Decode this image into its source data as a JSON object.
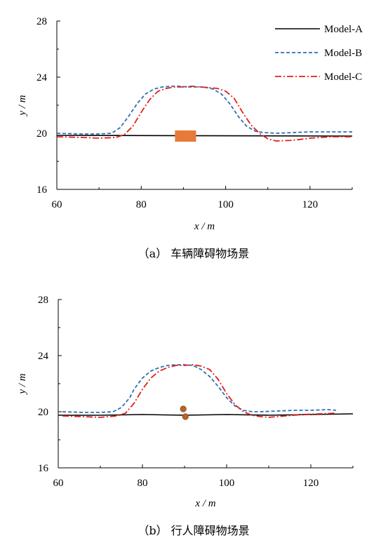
{
  "colors": {
    "model_a": "#000000",
    "model_b": "#2e6fb5",
    "model_c": "#e0201b",
    "obstacle_vehicle": "#e8793a",
    "obstacle_pedestrian": "#b5652a"
  },
  "chart_data": [
    {
      "type": "line",
      "caption": "（a）  车辆障碍物场景",
      "xlabel": "x / m",
      "ylabel": "y / m",
      "xlim": [
        60,
        130
      ],
      "ylim": [
        16,
        28
      ],
      "xticks": [
        60,
        80,
        100,
        120
      ],
      "yticks": [
        16,
        20,
        24,
        28
      ],
      "legend_position": "top-right",
      "series": [
        {
          "name": "Model-A",
          "style": "solid",
          "color": "#000000",
          "x": [
            60,
            130
          ],
          "y": [
            19.85,
            19.8
          ]
        },
        {
          "name": "Model-B",
          "style": "dashed",
          "color": "#2e6fb5",
          "x": [
            60,
            66,
            70,
            73,
            75,
            77,
            79,
            81,
            83,
            85,
            87,
            89,
            91,
            93,
            95,
            97,
            99,
            101,
            103,
            105,
            107,
            109,
            112,
            116,
            120,
            125,
            130
          ],
          "y": [
            20.0,
            19.95,
            19.95,
            20.0,
            20.4,
            21.2,
            22.1,
            22.8,
            23.15,
            23.3,
            23.35,
            23.35,
            23.3,
            23.3,
            23.3,
            23.15,
            22.8,
            22.1,
            21.2,
            20.5,
            20.15,
            20.05,
            20.0,
            20.05,
            20.1,
            20.1,
            20.1
          ]
        },
        {
          "name": "Model-C",
          "style": "dashdot",
          "color": "#e0201b",
          "x": [
            60,
            66,
            70,
            74,
            76,
            78,
            80,
            82,
            84,
            86,
            88,
            90,
            92,
            94,
            96,
            98,
            100,
            102,
            104,
            106,
            108,
            110,
            112,
            116,
            120,
            125,
            130
          ],
          "y": [
            19.75,
            19.7,
            19.65,
            19.7,
            19.9,
            20.5,
            21.5,
            22.4,
            23.0,
            23.2,
            23.3,
            23.3,
            23.35,
            23.3,
            23.25,
            23.2,
            23.0,
            22.5,
            21.5,
            20.6,
            20.0,
            19.6,
            19.45,
            19.5,
            19.65,
            19.75,
            19.75
          ]
        }
      ],
      "obstacles": [
        {
          "shape": "rect",
          "x_range": [
            88,
            93
          ],
          "y_range": [
            19.4,
            20.2
          ]
        }
      ]
    },
    {
      "type": "line",
      "caption": "（b）  行人障碍物场景",
      "xlabel": "x / m",
      "ylabel": "y / m",
      "xlim": [
        60,
        130
      ],
      "ylim": [
        16,
        28
      ],
      "xticks": [
        60,
        80,
        100,
        120
      ],
      "yticks": [
        16,
        20,
        24,
        28
      ],
      "series": [
        {
          "name": "Model-A",
          "style": "solid",
          "color": "#000000",
          "x": [
            60,
            70,
            80,
            90,
            100,
            110,
            120,
            130
          ],
          "y": [
            19.75,
            19.75,
            19.8,
            19.75,
            19.8,
            19.75,
            19.8,
            19.85
          ]
        },
        {
          "name": "Model-B",
          "style": "dashed",
          "color": "#2e6fb5",
          "x": [
            61,
            66,
            70,
            73,
            75,
            77,
            78,
            80,
            82,
            84,
            86,
            88,
            90,
            92,
            94,
            96,
            98,
            100,
            102,
            104,
            106,
            108,
            112,
            116,
            120,
            124,
            126
          ],
          "y": [
            20.0,
            19.95,
            19.95,
            20.0,
            20.3,
            21.0,
            21.6,
            22.4,
            22.9,
            23.15,
            23.3,
            23.35,
            23.35,
            23.3,
            23.0,
            22.5,
            21.8,
            21.0,
            20.4,
            20.1,
            20.0,
            20.0,
            20.05,
            20.1,
            20.1,
            20.15,
            20.1
          ]
        },
        {
          "name": "Model-C",
          "style": "dashdot",
          "color": "#e0201b",
          "x": [
            61,
            66,
            70,
            74,
            76,
            78,
            80,
            82,
            84,
            86,
            88,
            90,
            92,
            94,
            96,
            98,
            100,
            102,
            104,
            106,
            108,
            110,
            114,
            118,
            122,
            126
          ],
          "y": [
            19.7,
            19.65,
            19.6,
            19.7,
            19.9,
            20.6,
            21.6,
            22.4,
            22.9,
            23.15,
            23.3,
            23.3,
            23.35,
            23.25,
            23.0,
            22.3,
            21.3,
            20.5,
            20.0,
            19.75,
            19.65,
            19.6,
            19.7,
            19.8,
            19.85,
            19.9
          ]
        }
      ],
      "obstacles": [
        {
          "shape": "circle",
          "x": 89.7,
          "y": 20.2
        },
        {
          "shape": "circle",
          "x": 90.2,
          "y": 19.65
        }
      ]
    }
  ]
}
